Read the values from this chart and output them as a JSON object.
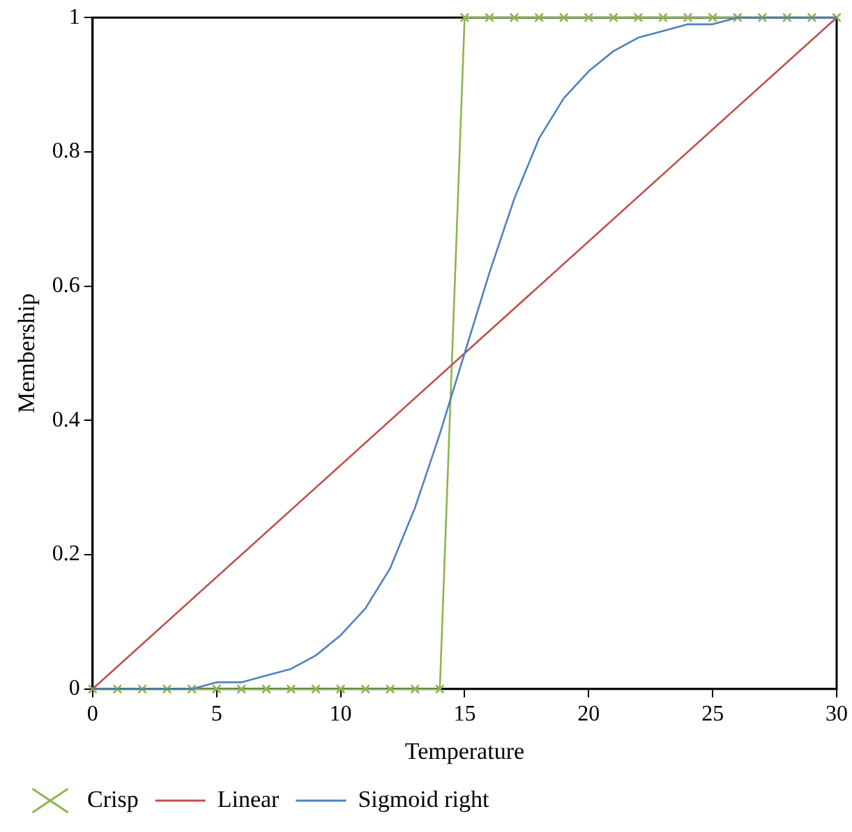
{
  "chart_data": {
    "type": "line",
    "xlabel": "Temperature",
    "ylabel": "Membership",
    "xlim": [
      0,
      30
    ],
    "xticks": [
      0,
      5,
      10,
      15,
      20,
      25,
      30
    ],
    "ylim": [
      0,
      1
    ],
    "yticks": [
      0,
      0.2,
      0.4,
      0.6,
      0.8,
      1
    ],
    "legend": "bottom",
    "grid": false,
    "line_style": "solid",
    "series": [
      {
        "name": "Crisp",
        "color": "#8db54a",
        "marker": "cross",
        "x": [
          0,
          1,
          2,
          3,
          4,
          5,
          6,
          7,
          8,
          9,
          10,
          11,
          12,
          13,
          14,
          15,
          16,
          17,
          18,
          19,
          20,
          21,
          22,
          23,
          24,
          25,
          26,
          27,
          28,
          29,
          30
        ],
        "values": [
          0,
          0,
          0,
          0,
          0,
          0,
          0,
          0,
          0,
          0,
          0,
          0,
          0,
          0,
          0,
          1,
          1,
          1,
          1,
          1,
          1,
          1,
          1,
          1,
          1,
          1,
          1,
          1,
          1,
          1,
          1
        ]
      },
      {
        "name": "Linear",
        "color": "#c0504d",
        "marker": "none",
        "x": [
          0,
          30
        ],
        "values": [
          0,
          1
        ]
      },
      {
        "name": "Sigmoid right",
        "color": "#4f81bd",
        "marker": "none",
        "x": [
          0,
          1,
          2,
          3,
          4,
          5,
          6,
          7,
          8,
          9,
          10,
          11,
          12,
          13,
          14,
          15,
          16,
          17,
          18,
          19,
          20,
          21,
          22,
          23,
          24,
          25,
          26,
          27,
          28,
          29,
          30
        ],
        "values": [
          0,
          0,
          0,
          0,
          0,
          0.01,
          0.01,
          0.02,
          0.03,
          0.05,
          0.08,
          0.12,
          0.18,
          0.27,
          0.38,
          0.5,
          0.62,
          0.73,
          0.82,
          0.88,
          0.92,
          0.95,
          0.97,
          0.98,
          0.99,
          0.99,
          1,
          1,
          1,
          1,
          1
        ]
      }
    ]
  }
}
